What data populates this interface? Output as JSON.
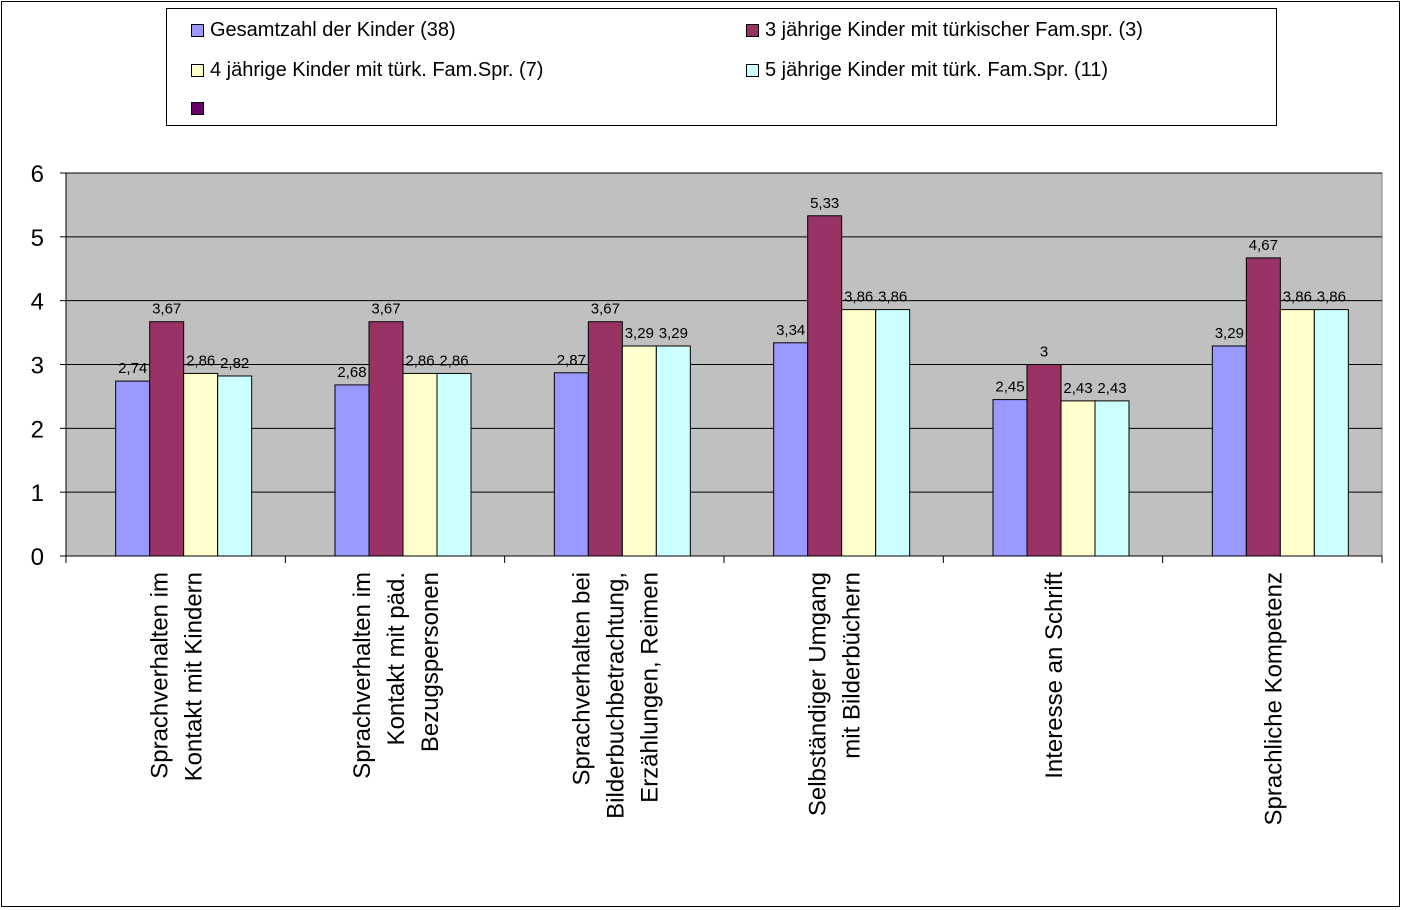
{
  "chart_data": {
    "type": "bar",
    "title": "",
    "xlabel": "",
    "ylabel": "",
    "ylim": [
      0,
      6
    ],
    "yticks": [
      "0",
      "1",
      "2",
      "3",
      "4",
      "5",
      "6"
    ],
    "grid": true,
    "legend_position": "top",
    "plot_background": "#c0c0c0",
    "categories": [
      [
        "Sprachverhalten im",
        "Kontakt mit Kindern"
      ],
      [
        "Sprachverhalten im",
        "Kontakt mit päd.",
        "Bezugspersonen"
      ],
      [
        "Sprachverhalten bei",
        "Bilderbuchbetrachtung,",
        "Erzählungen, Reimen"
      ],
      [
        "Selbständiger Umgang",
        "mit Bilderbüchern"
      ],
      [
        "Interesse an Schrift"
      ],
      [
        "Sprachliche Kompetenz"
      ]
    ],
    "series": [
      {
        "name": "Gesamtzahl der Kinder (38)",
        "color": "#9999ff",
        "values": [
          2.74,
          2.68,
          2.87,
          3.34,
          2.45,
          3.29
        ],
        "labels": [
          "2,74",
          "2,68",
          "2,87",
          "3,34",
          "2,45",
          "3,29"
        ]
      },
      {
        "name": "3 jährige Kinder mit türkischer Fam.spr. (3)",
        "color": "#993366",
        "values": [
          3.67,
          3.67,
          3.67,
          5.33,
          3,
          4.67
        ],
        "labels": [
          "3,67",
          "3,67",
          "3,67",
          "5,33",
          "3",
          "4,67"
        ]
      },
      {
        "name": "4 jährige Kinder mit türk. Fam.Spr. (7)",
        "color": "#ffffcc",
        "values": [
          2.86,
          2.86,
          3.29,
          3.86,
          2.43,
          3.86
        ],
        "labels": [
          "2,86",
          "2,86",
          "3,29",
          "3,86",
          "2,43",
          "3,86"
        ]
      },
      {
        "name": "5 jährige Kinder mit türk. Fam.Spr. (11)",
        "color": "#ccffff",
        "values": [
          2.82,
          2.86,
          3.29,
          3.86,
          2.43,
          3.86
        ],
        "labels": [
          "2,82",
          "2,86",
          "3,29",
          "3,86",
          "2,43",
          "3,86"
        ]
      }
    ],
    "extra_legend_swatch_color": "#660066"
  }
}
